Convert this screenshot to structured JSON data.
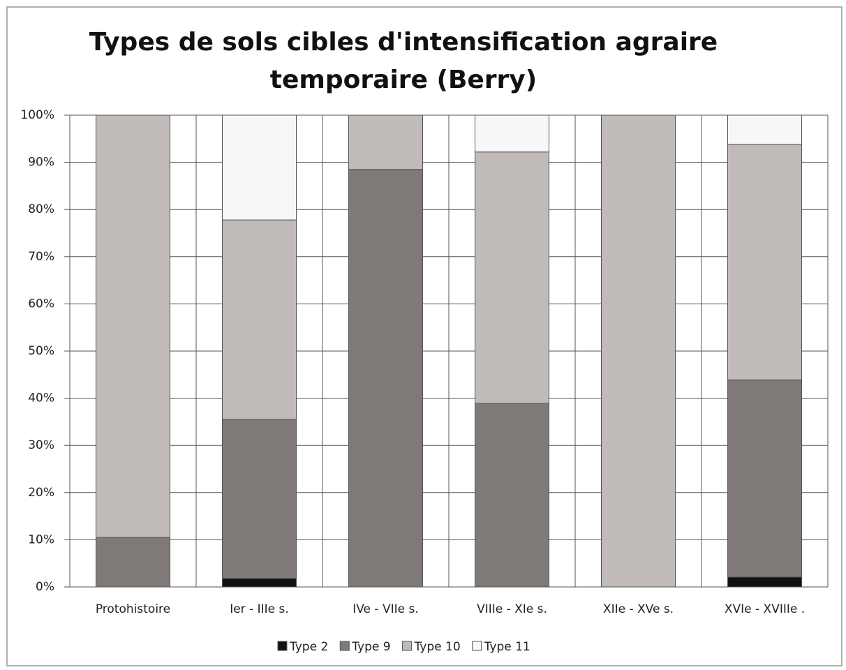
{
  "chart_data": {
    "type": "stacked_bar",
    "title": [
      "Types de sols cibles d'intensification agraire",
      "temporaire (Berry)"
    ],
    "categories": [
      "Protohistoire",
      "Ier - IIIe s.",
      "IVe - VIIe s.",
      "VIIIe - XIe s.",
      "XIIe - XVe s.",
      "XVIe - XVIIIe ."
    ],
    "series": [
      {
        "name": "Type 2",
        "color": "#111111",
        "values": [
          0,
          1.8,
          0,
          0,
          0,
          2.1
        ]
      },
      {
        "name": "Type 9",
        "color": "#7f7a77",
        "values": [
          10.5,
          33.7,
          88.5,
          38.9,
          0,
          41.8
        ]
      },
      {
        "name": "Type 10",
        "color": "#c0bab8",
        "values": [
          89.5,
          42.3,
          11.5,
          53.3,
          100,
          49.9
        ]
      },
      {
        "name": "Type 11",
        "color": "#f7f7f9",
        "values": [
          0,
          22.2,
          0,
          7.8,
          0,
          6.2
        ]
      }
    ],
    "ylim": [
      0,
      100
    ],
    "yticks": [
      {
        "value": 0,
        "label": "0%"
      },
      {
        "value": 10,
        "label": "10%"
      },
      {
        "value": 20,
        "label": "20%"
      },
      {
        "value": 30,
        "label": "30%"
      },
      {
        "value": 40,
        "label": "40%"
      },
      {
        "value": 50,
        "label": "50%"
      },
      {
        "value": 60,
        "label": "60%"
      },
      {
        "value": 70,
        "label": "70%"
      },
      {
        "value": 80,
        "label": "80%"
      },
      {
        "value": 90,
        "label": "90%"
      },
      {
        "value": 100,
        "label": "100%"
      }
    ],
    "grid": true
  }
}
